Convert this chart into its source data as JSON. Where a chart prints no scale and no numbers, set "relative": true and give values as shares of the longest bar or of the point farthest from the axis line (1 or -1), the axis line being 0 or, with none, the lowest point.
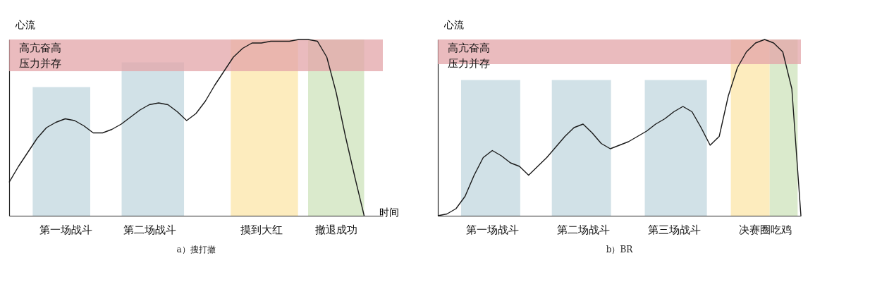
{
  "chart_data": [
    {
      "type": "line",
      "title": "a）搜打撤",
      "xlabel": "时间",
      "ylabel": "心流",
      "relative": true,
      "categories": [
        null,
        null,
        null,
        null,
        null,
        null,
        "第一场战斗",
        null,
        null,
        null,
        null,
        null,
        null,
        null,
        null,
        "第二场战斗",
        null,
        null,
        null,
        null,
        null,
        null,
        null,
        null,
        null,
        null,
        null,
        "摸到大红",
        null,
        null,
        null,
        null,
        null,
        null,
        null,
        "撤退成功",
        null,
        null,
        null,
        null,
        null
      ],
      "series": [
        {
          "color": "#1a1a1a",
          "values": [
            0.19,
            0.28,
            0.36,
            0.44,
            0.5,
            0.53,
            0.55,
            0.54,
            0.51,
            0.47,
            0.47,
            0.49,
            0.52,
            0.56,
            0.6,
            0.63,
            0.64,
            0.63,
            0.59,
            0.54,
            0.58,
            0.65,
            0.74,
            0.82,
            0.9,
            0.95,
            0.98,
            0.98,
            0.99,
            0.99,
            0.99,
            1,
            1,
            0.99,
            0.9,
            0.7,
            0.45,
            0.22,
            0,
            null,
            null
          ]
        }
      ],
      "bands": [
        {
          "axis": "y",
          "from": 0.82,
          "to": 1.0,
          "label": "高亢奋高压力并存",
          "color": "#e3a4a8"
        }
      ]
    },
    {
      "type": "line",
      "title": "b）BR",
      "ylabel": "心流",
      "relative": true,
      "categories": [
        null,
        null,
        null,
        null,
        null,
        null,
        "第一场战斗",
        null,
        null,
        null,
        null,
        null,
        null,
        null,
        null,
        null,
        "第二场战斗",
        null,
        null,
        null,
        null,
        null,
        null,
        null,
        null,
        null,
        "第三场战斗",
        null,
        null,
        null,
        null,
        null,
        null,
        null,
        null,
        null,
        "决赛圈吃鸡",
        null,
        null,
        null,
        null
      ],
      "series": [
        {
          "color": "#1a1a1a",
          "values": [
            0,
            0.01,
            0.04,
            0.11,
            0.23,
            0.33,
            0.37,
            0.34,
            0.3,
            0.28,
            0.23,
            0.28,
            0.33,
            0.39,
            0.45,
            0.5,
            0.52,
            0.47,
            0.41,
            0.38,
            0.4,
            0.42,
            0.45,
            0.48,
            0.52,
            0.55,
            0.59,
            0.62,
            0.59,
            0.5,
            0.4,
            0.45,
            0.68,
            0.84,
            0.93,
            0.98,
            1,
            0.98,
            0.93,
            0.72,
            0
          ]
        }
      ],
      "bands": [
        {
          "axis": "y",
          "from": 0.86,
          "to": 1.0,
          "label": "高亢奋高压力并存",
          "color": "#e3a4a8"
        }
      ]
    }
  ]
}
